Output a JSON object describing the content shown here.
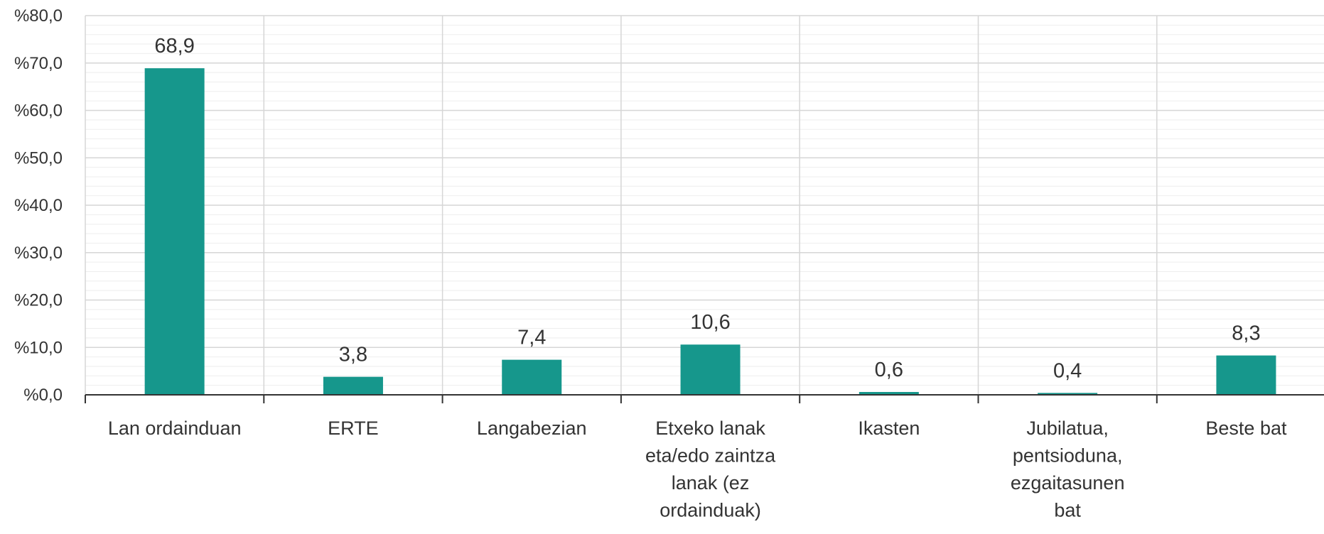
{
  "chart_data": {
    "type": "bar",
    "categories": [
      [
        "Lan ordainduan"
      ],
      [
        "ERTE"
      ],
      [
        "Langabezian"
      ],
      [
        "Etxeko lanak",
        "eta/edo zaintza",
        "lanak (ez",
        "ordainduak)"
      ],
      [
        "Ikasten"
      ],
      [
        "Jubilatua,",
        "pentsioduna,",
        "ezgaitasunen",
        "bat"
      ],
      [
        "Beste bat"
      ]
    ],
    "values": [
      68.9,
      3.8,
      7.4,
      10.6,
      0.6,
      0.4,
      8.3
    ],
    "data_labels": [
      "68,9",
      "3,8",
      "7,4",
      "10,6",
      "0,6",
      "0,4",
      "8,3"
    ],
    "ylim": [
      0,
      80
    ],
    "yticks": [
      {
        "value": 0,
        "label": "%0,0"
      },
      {
        "value": 10,
        "label": "%10,0"
      },
      {
        "value": 20,
        "label": "%20,0"
      },
      {
        "value": 30,
        "label": "%30,0"
      },
      {
        "value": 40,
        "label": "%40,0"
      },
      {
        "value": 50,
        "label": "%50,0"
      },
      {
        "value": 60,
        "label": "%60,0"
      },
      {
        "value": 70,
        "label": "%70,0"
      },
      {
        "value": 80,
        "label": "%80,0"
      }
    ],
    "minor_step": 2,
    "grid": true,
    "bar_color": "#16978c",
    "title": "",
    "xlabel": "",
    "ylabel": ""
  }
}
